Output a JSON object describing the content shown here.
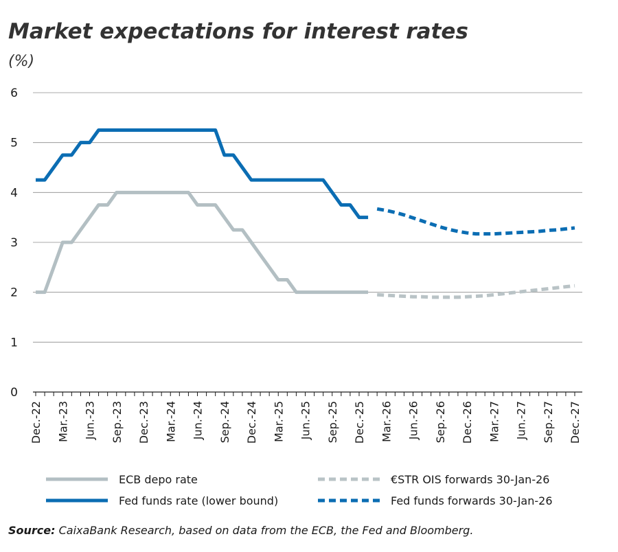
{
  "chart_data": {
    "type": "line",
    "title": "Market expectations for interest rates",
    "subtitle": "(%)",
    "source_label": "Source:",
    "source": "CaixaBank Research, based on data from the ECB, the Fed and Bloomberg.",
    "categories": [
      "Dec.-22",
      null,
      null,
      "Mar.-23",
      null,
      null,
      "Jun.-23",
      null,
      null,
      "Sep.-23",
      null,
      null,
      "Dec.-23",
      null,
      null,
      "Mar.-24",
      null,
      null,
      "Jun.-24",
      null,
      null,
      "Sep.-24",
      null,
      null,
      "Dec.-24",
      null,
      null,
      "Mar.-25",
      null,
      null,
      "Jun.-25",
      null,
      null,
      "Sep.-25",
      null,
      null,
      "Dec.-25",
      null,
      null,
      "Mar.-26",
      null,
      null,
      "Jun.-26",
      null,
      null,
      "Sep.-26",
      null,
      null,
      "Dec.-26",
      null,
      null,
      "Mar.-27",
      null,
      null,
      "Jun.-27",
      null,
      null,
      "Sep.-27",
      null,
      null,
      "Dec.-27"
    ],
    "series": [
      {
        "name": "ECB depo rate",
        "color": "#b3bfc3",
        "dashed": false,
        "values": [
          2,
          2,
          2.5,
          3,
          3,
          3.25,
          3.5,
          3.75,
          3.75,
          4,
          4,
          4,
          4,
          4,
          4,
          4,
          4,
          4,
          3.75,
          3.75,
          3.75,
          3.5,
          3.25,
          3.25,
          3,
          2.75,
          2.5,
          2.25,
          2.25,
          2,
          2,
          2,
          2,
          2,
          2,
          2,
          2,
          2,
          null,
          null,
          null,
          null,
          null,
          null,
          null,
          null,
          null,
          null,
          null,
          null,
          null,
          null,
          null,
          null,
          null,
          null,
          null,
          null,
          null,
          null,
          null
        ]
      },
      {
        "name": "€STR OIS forwards 30-Jan-26",
        "color": "#b9c3c6",
        "dashed": true,
        "values": [
          null,
          null,
          null,
          null,
          null,
          null,
          null,
          null,
          null,
          null,
          null,
          null,
          null,
          null,
          null,
          null,
          null,
          null,
          null,
          null,
          null,
          null,
          null,
          null,
          null,
          null,
          null,
          null,
          null,
          null,
          null,
          null,
          null,
          null,
          null,
          null,
          null,
          null,
          1.95,
          1.94,
          1.93,
          1.92,
          1.91,
          1.91,
          1.9,
          1.9,
          1.9,
          1.9,
          1.91,
          1.92,
          1.93,
          1.95,
          1.97,
          1.99,
          2.01,
          2.03,
          2.05,
          2.07,
          2.09,
          2.11,
          2.13
        ]
      },
      {
        "name": "Fed funds rate (lower bound)",
        "color": "#0b6db3",
        "dashed": false,
        "values": [
          4.25,
          4.25,
          4.5,
          4.75,
          4.75,
          5,
          5,
          5.25,
          5.25,
          5.25,
          5.25,
          5.25,
          5.25,
          5.25,
          5.25,
          5.25,
          5.25,
          5.25,
          5.25,
          5.25,
          5.25,
          4.75,
          4.75,
          4.5,
          4.25,
          4.25,
          4.25,
          4.25,
          4.25,
          4.25,
          4.25,
          4.25,
          4.25,
          4,
          3.75,
          3.75,
          3.5,
          3.5,
          null,
          null,
          null,
          null,
          null,
          null,
          null,
          null,
          null,
          null,
          null,
          null,
          null,
          null,
          null,
          null,
          null,
          null,
          null,
          null,
          null,
          null,
          null
        ]
      },
      {
        "name": "Fed funds forwards 30-Jan-26",
        "color": "#0b6db3",
        "dashed": true,
        "values": [
          null,
          null,
          null,
          null,
          null,
          null,
          null,
          null,
          null,
          null,
          null,
          null,
          null,
          null,
          null,
          null,
          null,
          null,
          null,
          null,
          null,
          null,
          null,
          null,
          null,
          null,
          null,
          null,
          null,
          null,
          null,
          null,
          null,
          null,
          null,
          null,
          null,
          null,
          3.67,
          3.64,
          3.6,
          3.55,
          3.49,
          3.43,
          3.37,
          3.31,
          3.26,
          3.22,
          3.19,
          3.17,
          3.17,
          3.17,
          3.18,
          3.19,
          3.2,
          3.21,
          3.22,
          3.24,
          3.25,
          3.27,
          3.29
        ]
      }
    ],
    "ylim": [
      0,
      6
    ],
    "yticks": [
      0,
      1,
      2,
      3,
      4,
      5,
      6
    ],
    "grid": true
  }
}
